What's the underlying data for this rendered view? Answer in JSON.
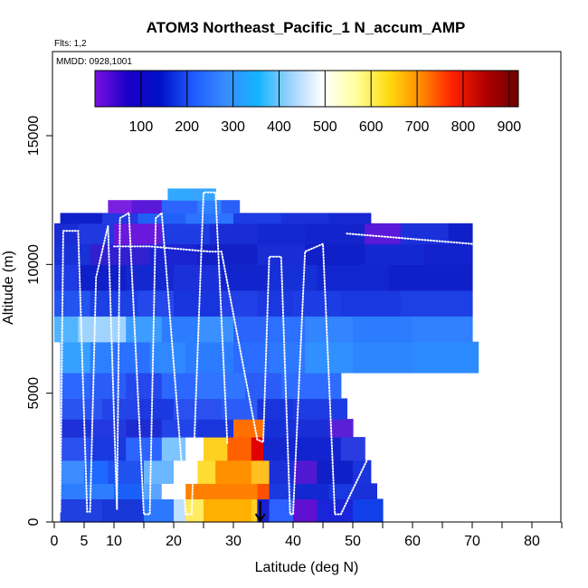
{
  "chart_data": {
    "type": "heatmap",
    "title": "ATOM3 Northeast_Pacific_1 N_accum_AMP",
    "flights_label": "Flts: 1,2",
    "dates_label": "MMDD: 0928,1001",
    "xlabel": "Latitude (deg N)",
    "ylabel": "Altitude (m)",
    "xlim": [
      -0.5,
      85
    ],
    "ylim": [
      0,
      18000
    ],
    "x_ticks": [
      0,
      5,
      10,
      20,
      30,
      40,
      50,
      60,
      70,
      80
    ],
    "x_tick_labels": [
      "0",
      "5",
      "10",
      "20",
      "30",
      "40",
      "50",
      "60",
      "70",
      "80"
    ],
    "y_ticks": [
      0,
      5000,
      10000,
      15000
    ],
    "y_tick_labels": [
      "0",
      "5000",
      "10000",
      "15000"
    ],
    "colorbar": {
      "min": 0,
      "max": 920,
      "ticks": [
        100,
        200,
        300,
        400,
        500,
        600,
        700,
        800,
        900
      ],
      "tick_labels": [
        "100",
        "200",
        "300",
        "400",
        "500",
        "600",
        "700",
        "800",
        "900"
      ],
      "colors": [
        "#7a10e0",
        "#1a00c8",
        "#0010c8",
        "#1e5aff",
        "#3a8cff",
        "#14b4ff",
        "#9ed2ff",
        "#ffffff",
        "#ffffa0",
        "#ffdc10",
        "#ff8c00",
        "#ff2000",
        "#b00000",
        "#6e0000"
      ]
    },
    "layers": [
      {
        "alt": [
          0,
          900
        ],
        "lat": [
          1,
          55
        ],
        "segs": [
          [
            1,
            8,
            "#2040e0"
          ],
          [
            8,
            15,
            "#1838d8"
          ],
          [
            15,
            20,
            "#2c78ff"
          ],
          [
            20,
            22,
            "#c0e0ff"
          ],
          [
            22,
            25,
            "#ffec60"
          ],
          [
            25,
            33,
            "#ffb000"
          ],
          [
            33,
            34,
            "#ffd020"
          ],
          [
            34,
            36,
            "#1a20d0"
          ],
          [
            36,
            40,
            "#2c60ff"
          ],
          [
            40,
            44,
            "#6010d0"
          ],
          [
            44,
            50,
            "#1a24d8"
          ],
          [
            50,
            55,
            "#1040e8"
          ]
        ]
      },
      {
        "alt": [
          900,
          1500
        ],
        "lat": [
          1,
          54
        ],
        "segs": [
          [
            1,
            10,
            "#2d7dff"
          ],
          [
            10,
            15,
            "#1860f8"
          ],
          [
            15,
            18,
            "#5aa4ff"
          ],
          [
            18,
            22,
            "#ffffff"
          ],
          [
            22,
            34,
            "#ff8000"
          ],
          [
            34,
            36,
            "#ff5000"
          ],
          [
            36,
            40,
            "#1a3ae0"
          ],
          [
            40,
            46,
            "#1228d0"
          ],
          [
            46,
            50,
            "#1838e0"
          ],
          [
            50,
            54,
            "#1a30d8"
          ]
        ]
      },
      {
        "alt": [
          1500,
          2400
        ],
        "lat": [
          1,
          53
        ],
        "segs": [
          [
            1,
            5,
            "#3c8cff"
          ],
          [
            5,
            9,
            "#1e68ff"
          ],
          [
            9,
            15,
            "#2052f0"
          ],
          [
            15,
            20,
            "#6ab6ff"
          ],
          [
            20,
            24,
            "#ffffff"
          ],
          [
            24,
            27,
            "#ffdc30"
          ],
          [
            27,
            33,
            "#ff9000"
          ],
          [
            33,
            36,
            "#ffc020"
          ],
          [
            36,
            40,
            "#1a30d8"
          ],
          [
            40,
            44,
            "#5018d0"
          ],
          [
            44,
            50,
            "#1020c8"
          ],
          [
            50,
            53,
            "#1a34dc"
          ]
        ]
      },
      {
        "alt": [
          2400,
          3300
        ],
        "lat": [
          1,
          52
        ],
        "segs": [
          [
            1,
            6,
            "#2a50f0"
          ],
          [
            6,
            12,
            "#1838e0"
          ],
          [
            12,
            18,
            "#2c64ff"
          ],
          [
            18,
            22,
            "#7ec4ff"
          ],
          [
            22,
            25,
            "#ffffff"
          ],
          [
            25,
            29,
            "#ffd020"
          ],
          [
            29,
            33,
            "#ff6000"
          ],
          [
            33,
            35,
            "#e00000"
          ],
          [
            35,
            40,
            "#1428d0"
          ],
          [
            40,
            48,
            "#1224d0"
          ],
          [
            48,
            52,
            "#2a3ce0"
          ]
        ]
      },
      {
        "alt": [
          3300,
          4000
        ],
        "lat": [
          1,
          50
        ],
        "segs": [
          [
            1,
            6,
            "#1e30d8"
          ],
          [
            6,
            12,
            "#2238e0"
          ],
          [
            12,
            18,
            "#1c2cd0"
          ],
          [
            18,
            24,
            "#2044e8"
          ],
          [
            24,
            30,
            "#1a36dc"
          ],
          [
            30,
            35,
            "#ff7000"
          ],
          [
            35,
            40,
            "#1630d8"
          ],
          [
            40,
            46,
            "#1a2ed8"
          ],
          [
            46,
            50,
            "#5a20d8"
          ]
        ]
      },
      {
        "alt": [
          4000,
          4800
        ],
        "lat": [
          1,
          49
        ],
        "segs": [
          [
            1,
            8,
            "#2a54f0"
          ],
          [
            8,
            14,
            "#2244e8"
          ],
          [
            14,
            20,
            "#1c38e0"
          ],
          [
            20,
            28,
            "#2a50f0"
          ],
          [
            28,
            34,
            "#2c5cf8"
          ],
          [
            34,
            40,
            "#1a34dc"
          ],
          [
            40,
            49,
            "#1e3ce4"
          ]
        ]
      },
      {
        "alt": [
          4800,
          5800
        ],
        "lat": [
          1,
          48
        ],
        "segs": [
          [
            1,
            6,
            "#2c68ff"
          ],
          [
            6,
            12,
            "#2a5cf8"
          ],
          [
            12,
            18,
            "#2448ec"
          ],
          [
            18,
            24,
            "#2c68ff"
          ],
          [
            24,
            32,
            "#3074ff"
          ],
          [
            32,
            38,
            "#2a5cf8"
          ],
          [
            38,
            48,
            "#2e6cff"
          ]
        ]
      },
      {
        "alt": [
          5800,
          7000
        ],
        "lat": [
          1,
          71
        ],
        "segs": [
          [
            1,
            6,
            "#36a0ff"
          ],
          [
            6,
            10,
            "#2c80ff"
          ],
          [
            10,
            16,
            "#2a70ff"
          ],
          [
            16,
            22,
            "#3088ff"
          ],
          [
            22,
            30,
            "#2c7cff"
          ],
          [
            30,
            36,
            "#2a6cff"
          ],
          [
            36,
            42,
            "#2e78ff"
          ],
          [
            42,
            50,
            "#3090ff"
          ],
          [
            50,
            60,
            "#2e86ff"
          ],
          [
            60,
            71,
            "#2c8cff"
          ]
        ]
      },
      {
        "alt": [
          7000,
          8000
        ],
        "lat": [
          0,
          70
        ],
        "segs": [
          [
            0,
            4,
            "#52b4ff"
          ],
          [
            4,
            12,
            "#a0d4ff"
          ],
          [
            12,
            18,
            "#3c9cff"
          ],
          [
            18,
            24,
            "#2c7cff"
          ],
          [
            24,
            30,
            "#3a90ff"
          ],
          [
            30,
            36,
            "#2a64f8"
          ],
          [
            36,
            42,
            "#2c70ff"
          ],
          [
            42,
            50,
            "#3284ff"
          ],
          [
            50,
            60,
            "#2c7cff"
          ],
          [
            60,
            70,
            "#3080ff"
          ]
        ]
      },
      {
        "alt": [
          8000,
          9000
        ],
        "lat": [
          0,
          70
        ],
        "segs": [
          [
            0,
            6,
            "#2454f0"
          ],
          [
            6,
            14,
            "#1c40e4"
          ],
          [
            14,
            20,
            "#2448ec"
          ],
          [
            20,
            28,
            "#1834dc"
          ],
          [
            28,
            34,
            "#2240e8"
          ],
          [
            34,
            40,
            "#1a38e0"
          ],
          [
            40,
            48,
            "#1c3ce4"
          ],
          [
            48,
            58,
            "#1a38e0"
          ],
          [
            58,
            70,
            "#1c40e4"
          ]
        ]
      },
      {
        "alt": [
          9000,
          10000
        ],
        "lat": [
          0,
          70
        ],
        "segs": [
          [
            0,
            4,
            "#1e3ce4"
          ],
          [
            4,
            12,
            "#1020c8"
          ],
          [
            12,
            20,
            "#1428d0"
          ],
          [
            20,
            28,
            "#1a30d8"
          ],
          [
            28,
            36,
            "#1224cc"
          ],
          [
            36,
            44,
            "#1630d8"
          ],
          [
            44,
            56,
            "#1226d0"
          ],
          [
            56,
            70,
            "#1020c8"
          ]
        ]
      },
      {
        "alt": [
          10000,
          10800
        ],
        "lat": [
          0,
          70
        ],
        "segs": [
          [
            0,
            6,
            "#1832d8"
          ],
          [
            6,
            16,
            "#3020d0"
          ],
          [
            16,
            24,
            "#1a24d0"
          ],
          [
            24,
            34,
            "#1220c8"
          ],
          [
            34,
            42,
            "#1a2cd4"
          ],
          [
            42,
            52,
            "#1020c8"
          ],
          [
            52,
            62,
            "#1428d0"
          ],
          [
            62,
            70,
            "#1222cc"
          ]
        ]
      },
      {
        "alt": [
          10800,
          11600
        ],
        "lat": [
          0,
          70
        ],
        "segs": [
          [
            0,
            4,
            "#1a2cd4"
          ],
          [
            4,
            10,
            "#2038e0"
          ],
          [
            10,
            18,
            "#6a18dc"
          ],
          [
            18,
            26,
            "#1e3ce4"
          ],
          [
            26,
            34,
            "#1a2cd4"
          ],
          [
            34,
            42,
            "#1428d0"
          ],
          [
            42,
            52,
            "#1424cc"
          ],
          [
            52,
            58,
            "#5a18d8"
          ],
          [
            58,
            66,
            "#1a30d8"
          ],
          [
            66,
            70,
            "#1020c8"
          ]
        ]
      },
      {
        "alt": [
          11600,
          12000
        ],
        "lat": [
          1,
          53
        ],
        "segs": [
          [
            1,
            8,
            "#1020c8"
          ],
          [
            8,
            14,
            "#2238e0"
          ],
          [
            14,
            22,
            "#2060f8"
          ],
          [
            22,
            30,
            "#2c74ff"
          ],
          [
            30,
            38,
            "#1c3ce4"
          ],
          [
            38,
            46,
            "#1a30d8"
          ],
          [
            46,
            53,
            "#1628d0"
          ]
        ]
      },
      {
        "alt": [
          12000,
          12500
        ],
        "lat": [
          9,
          31
        ],
        "segs": [
          [
            9,
            13,
            "#7a20e0"
          ],
          [
            13,
            18,
            "#5a18d8"
          ],
          [
            18,
            24,
            "#2c64ff"
          ],
          [
            24,
            28,
            "#3080ff"
          ],
          [
            28,
            31,
            "#2a60f8"
          ]
        ]
      },
      {
        "alt": [
          12500,
          12950
        ],
        "lat": [
          19,
          27
        ],
        "segs": [
          [
            19,
            23,
            "#30a8ff"
          ],
          [
            23,
            27,
            "#36a4ff"
          ]
        ]
      }
    ],
    "flight_tracks": [
      [
        [
          1,
          400
        ],
        [
          1.5,
          11300
        ],
        [
          4,
          11300
        ],
        [
          5.5,
          400
        ],
        [
          6,
          400
        ],
        [
          7,
          9500
        ],
        [
          9,
          11500
        ],
        [
          10.5,
          500
        ],
        [
          11,
          11800
        ],
        [
          12.5,
          12000
        ],
        [
          15,
          300
        ],
        [
          16,
          300
        ],
        [
          17,
          11800
        ],
        [
          18,
          12000
        ],
        [
          22,
          300
        ],
        [
          23,
          300
        ],
        [
          25,
          12800
        ],
        [
          27,
          12800
        ],
        [
          29,
          3000
        ]
      ],
      [
        [
          10,
          10700
        ],
        [
          16,
          10700
        ],
        [
          26,
          10500
        ],
        [
          28,
          10500
        ],
        [
          34,
          3200
        ],
        [
          35,
          3100
        ],
        [
          36,
          10300
        ],
        [
          38,
          10300
        ],
        [
          39.5,
          300
        ],
        [
          40,
          300
        ],
        [
          42,
          10500
        ],
        [
          45,
          10800
        ],
        [
          47,
          300
        ],
        [
          48,
          300
        ],
        [
          53,
          2700
        ]
      ],
      [
        [
          49,
          11200
        ],
        [
          70,
          10800
        ]
      ]
    ],
    "arrow_marker": {
      "lat": 34.5,
      "alt_from": 800,
      "alt_to": 0
    }
  }
}
